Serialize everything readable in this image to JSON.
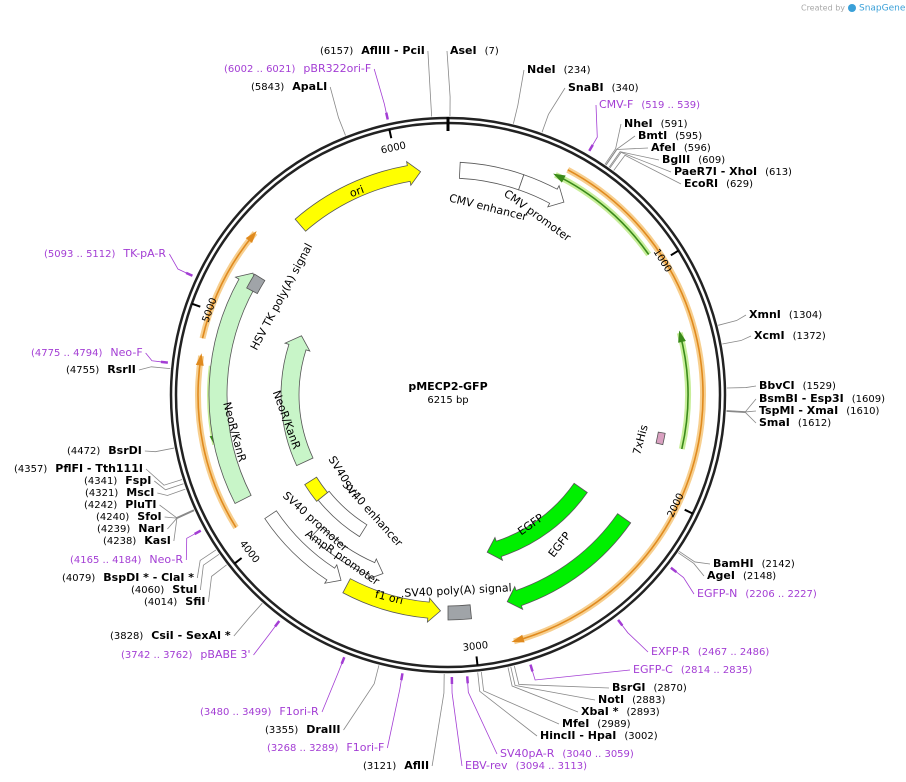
{
  "credit": {
    "prefix": "Created by",
    "brand": "SnapGene"
  },
  "map": {
    "name": "pMECP2-GFP",
    "length": "6215 bp",
    "ticks": [
      1000,
      2000,
      3000,
      4000,
      5000,
      6000
    ]
  },
  "features": [
    {
      "label": "ori"
    },
    {
      "label": "CMV enhancer"
    },
    {
      "label": "CMV promoter"
    },
    {
      "label": "7xHis"
    },
    {
      "label": "EGFP"
    },
    {
      "label": "EGFP"
    },
    {
      "label": "SV40 poly(A) signal"
    },
    {
      "label": "f1 ori"
    },
    {
      "label": "AmpR promoter"
    },
    {
      "label": "SV40 promoter"
    },
    {
      "label": "SV40 enhancer"
    },
    {
      "label": "SV40 ori"
    },
    {
      "label": "NeoR/KanR"
    },
    {
      "label": "NeoR/KanR"
    },
    {
      "label": "HSV TK poly(A) signal"
    }
  ],
  "sites": [
    {
      "name": "AseI",
      "position": "(7)"
    },
    {
      "name": "AflIII  - PciI",
      "position": "(6157)"
    },
    {
      "name": "NdeI",
      "position": "(234)"
    },
    {
      "name": "SnaBI",
      "position": "(340)"
    },
    {
      "name": "NheI",
      "position": "(591)"
    },
    {
      "name": "BmtI",
      "position": "(595)"
    },
    {
      "name": "AfeI",
      "position": "(596)"
    },
    {
      "name": "BglII",
      "position": "(609)"
    },
    {
      "name": "PaeR7I  - XhoI",
      "position": "(613)"
    },
    {
      "name": "EcoRI",
      "position": "(629)"
    },
    {
      "name": "XmnI",
      "position": "(1304)"
    },
    {
      "name": "XcmI",
      "position": "(1372)"
    },
    {
      "name": "BbvCI",
      "position": "(1529)"
    },
    {
      "name": "BsmBI  - Esp3I",
      "position": "(1609)"
    },
    {
      "name": "TspMI  - XmaI",
      "position": "(1610)"
    },
    {
      "name": "SmaI",
      "position": "(1612)"
    },
    {
      "name": "BamHI",
      "position": "(2142)"
    },
    {
      "name": "AgeI",
      "position": "(2148)"
    },
    {
      "name": "BsrGI",
      "position": "(2870)"
    },
    {
      "name": "NotI",
      "position": "(2883)"
    },
    {
      "name": "XbaI *",
      "position": "(2893)"
    },
    {
      "name": "MfeI",
      "position": "(2989)"
    },
    {
      "name": "HincII  - HpaI",
      "position": "(3002)"
    },
    {
      "name": "AflII",
      "position": "(3121)"
    },
    {
      "name": "DraIII",
      "position": "(3355)"
    },
    {
      "name": "CsiI  - SexAI *",
      "position": "(3828)"
    },
    {
      "name": "SfiI",
      "position": "(4014)"
    },
    {
      "name": "StuI",
      "position": "(4060)"
    },
    {
      "name": "BspDI *  - ClaI *",
      "position": "(4079)"
    },
    {
      "name": "KasI",
      "position": "(4238)"
    },
    {
      "name": "NarI",
      "position": "(4239)"
    },
    {
      "name": "SfoI",
      "position": "(4240)"
    },
    {
      "name": "PluTI",
      "position": "(4242)"
    },
    {
      "name": "MscI",
      "position": "(4321)"
    },
    {
      "name": "FspI",
      "position": "(4341)"
    },
    {
      "name": "PflFI  - Tth111I",
      "position": "(4357)"
    },
    {
      "name": "BsrDI",
      "position": "(4472)"
    },
    {
      "name": "RsrII",
      "position": "(4755)"
    },
    {
      "name": "ApaLI",
      "position": "(5843)"
    }
  ],
  "primers": [
    {
      "name": "pBR322ori-F",
      "range": "(6002 .. 6021)"
    },
    {
      "name": "CMV-F",
      "range": "(519 .. 539)"
    },
    {
      "name": "TK-pA-R",
      "range": "(5093 .. 5112)"
    },
    {
      "name": "Neo-F",
      "range": "(4775 .. 4794)"
    },
    {
      "name": "Neo-R",
      "range": "(4165 .. 4184)"
    },
    {
      "name": "EGFP-N",
      "range": "(2206 .. 2227)"
    },
    {
      "name": "EXFP-R",
      "range": "(2467 .. 2486)"
    },
    {
      "name": "EGFP-C",
      "range": "(2814 .. 2835)"
    },
    {
      "name": "SV40pA-R",
      "range": "(3040 .. 3059)"
    },
    {
      "name": "EBV-rev",
      "range": "(3094 .. 3113)"
    },
    {
      "name": "F1ori-R",
      "range": "(3480 .. 3499)"
    },
    {
      "name": "F1ori-F",
      "range": "(3268 .. 3289)"
    },
    {
      "name": "pBABE 3'",
      "range": "(3742 .. 3762)"
    }
  ]
}
